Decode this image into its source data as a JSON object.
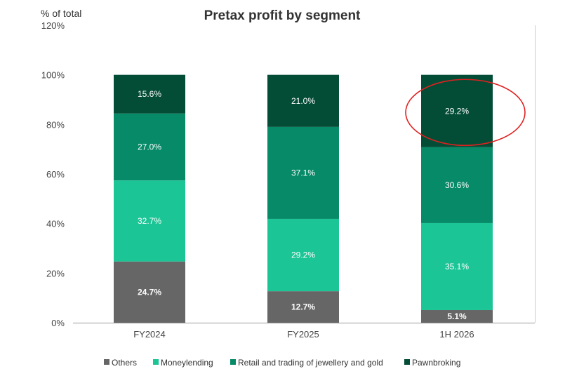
{
  "chart_data": {
    "type": "bar",
    "stacked": true,
    "title": "Pretax profit by segment",
    "ylabel": "% of total",
    "xlabel": "",
    "ylim": [
      0,
      120
    ],
    "yticks": [
      "0%",
      "20%",
      "40%",
      "60%",
      "80%",
      "100%",
      "120%"
    ],
    "categories": [
      "FY2024",
      "FY2025",
      "1H 2026"
    ],
    "series": [
      {
        "name": "Others",
        "color": "#666666",
        "values": [
          24.7,
          12.7,
          5.1
        ],
        "labels": [
          "24.7%",
          "12.7%",
          "5.1%"
        ],
        "bold_labels": true
      },
      {
        "name": "Moneylending",
        "color": "#1cc596",
        "values": [
          32.7,
          29.2,
          35.1
        ],
        "labels": [
          "32.7%",
          "29.2%",
          "35.1%"
        ],
        "bold_labels": false
      },
      {
        "name": "Retail and trading of jewellery and gold",
        "color": "#078a68",
        "values": [
          27.0,
          37.1,
          30.6
        ],
        "labels": [
          "27.0%",
          "37.1%",
          "30.6%"
        ],
        "bold_labels": false
      },
      {
        "name": "Pawnbroking",
        "color": "#034d36",
        "values": [
          15.6,
          21.0,
          29.2
        ],
        "labels": [
          "15.6%",
          "21.0%",
          "29.2%"
        ],
        "bold_labels": false
      }
    ],
    "annotation": {
      "type": "ellipse",
      "color": "#e02020",
      "target_category": "1H 2026",
      "target_series": "Pawnbroking"
    },
    "legend_position": "bottom",
    "grid": false
  }
}
